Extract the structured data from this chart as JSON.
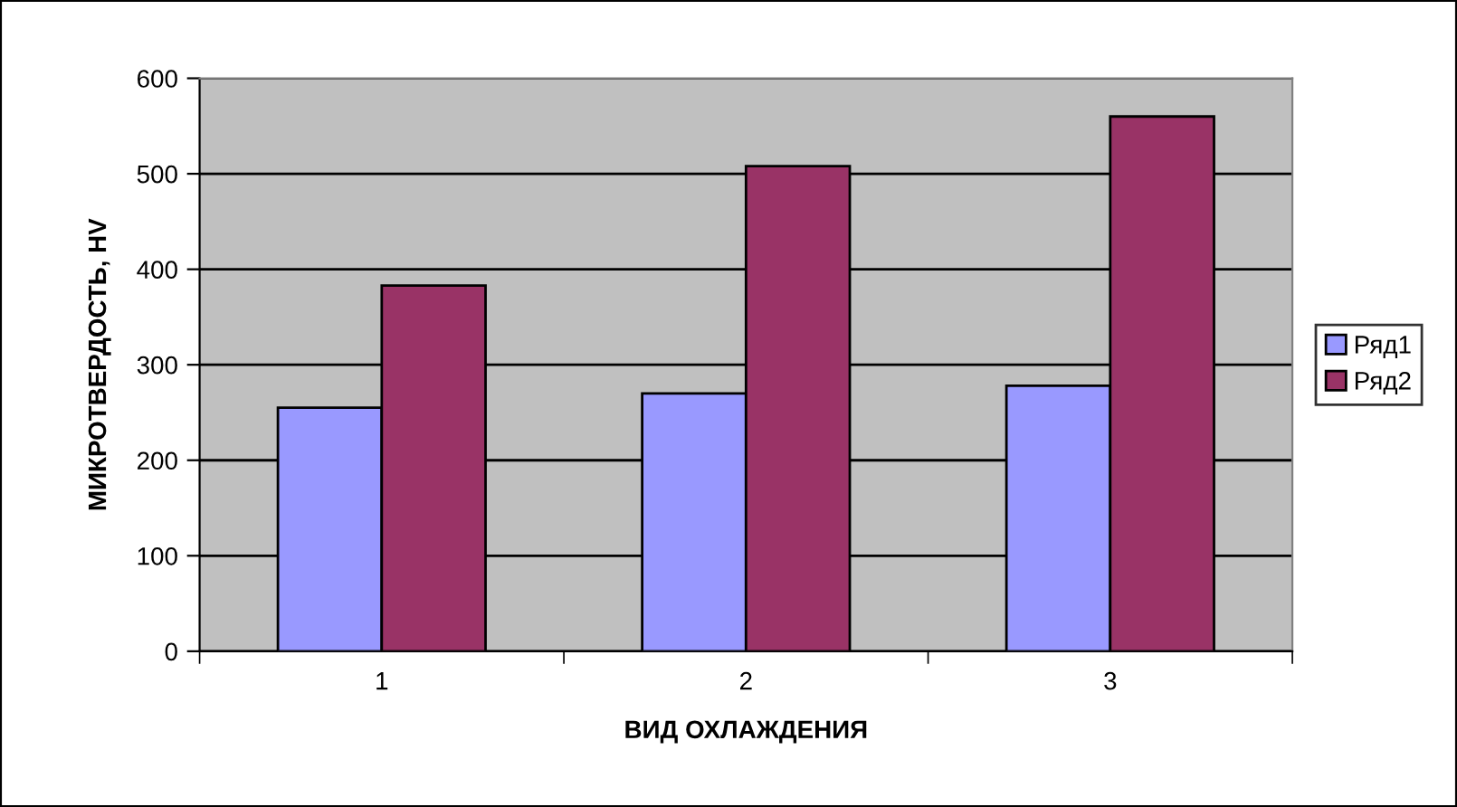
{
  "chart_data": {
    "type": "bar",
    "xlabel": "ВИД ОХЛАЖДЕНИЯ",
    "ylabel": "МИКРОТВЕРДОСТЬ, HV",
    "categories": [
      "1",
      "2",
      "3"
    ],
    "series": [
      {
        "name": "Ряд1",
        "color": "#9999ff",
        "values": [
          255,
          270,
          278
        ]
      },
      {
        "name": "Ряд2",
        "color": "#993366",
        "values": [
          383,
          508,
          560
        ]
      }
    ],
    "ylim": [
      0,
      600
    ],
    "yticks": [
      0,
      100,
      200,
      300,
      400,
      500,
      600
    ],
    "grid": "y",
    "legend": "right"
  }
}
